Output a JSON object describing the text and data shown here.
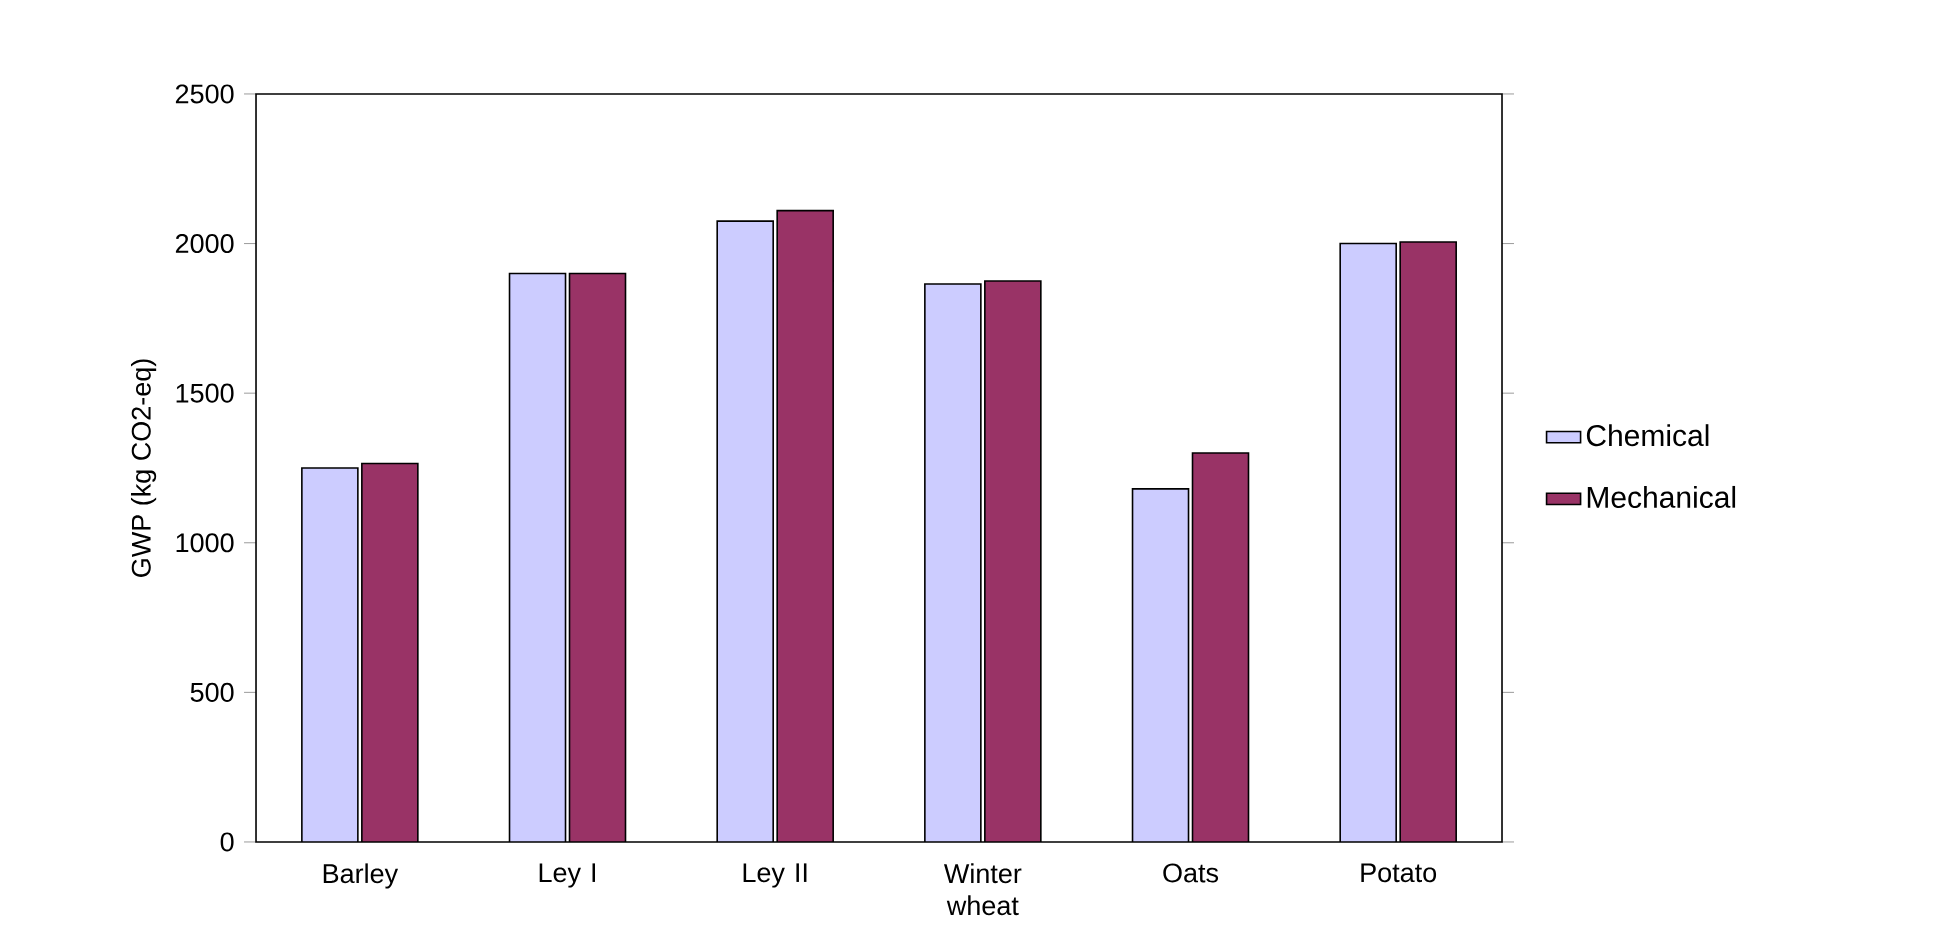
{
  "chart_data": {
    "type": "bar",
    "ylabel": "GWP (kg CO2-eq)",
    "categories": [
      "Barley",
      "Ley I",
      "Ley II",
      "Winter wheat",
      "Oats",
      "Potato"
    ],
    "series": [
      {
        "name": "Chemical",
        "color": "#ccccff",
        "values": [
          1250,
          1900,
          2075,
          1865,
          1180,
          2000
        ]
      },
      {
        "name": "Mechanical",
        "color": "#993366",
        "values": [
          1265,
          1900,
          2110,
          1875,
          1300,
          2005
        ]
      }
    ],
    "ylim": [
      0,
      2500
    ],
    "yticks": [
      0,
      500,
      1000,
      1500,
      2000,
      2500
    ],
    "grid": false,
    "legend": "right"
  }
}
